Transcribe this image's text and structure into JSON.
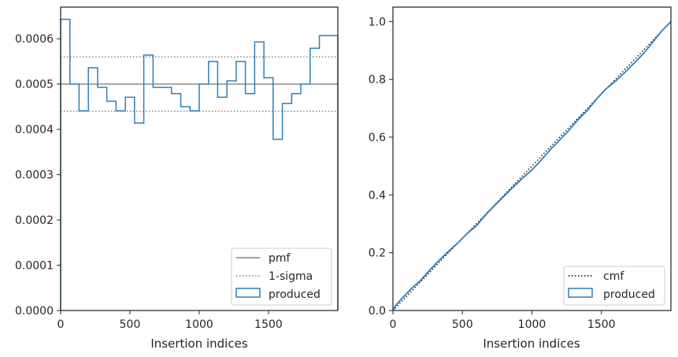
{
  "chart_data": [
    {
      "type": "step",
      "xlabel": "Insertion indices",
      "ylabel": "",
      "xlim": [
        0,
        2000
      ],
      "ylim": [
        0,
        0.00067
      ],
      "xticks": [
        0,
        500,
        1000,
        1500
      ],
      "xtick_labels": [
        "0",
        "500",
        "1000",
        "1500"
      ],
      "yticks": [
        0,
        0.0001,
        0.0002,
        0.0003,
        0.0004,
        0.0005,
        0.0006
      ],
      "ytick_labels": [
        "0.0000",
        "0.0001",
        "0.0002",
        "0.0003",
        "0.0004",
        "0.0005",
        "0.0006"
      ],
      "grid": false,
      "legend_position": "lower-right",
      "series": [
        {
          "name": "pmf",
          "kind": "hline",
          "y": 0.0005,
          "color": "#808080",
          "style": "solid"
        },
        {
          "name": "1-sigma",
          "kind": "hlines",
          "y": [
            0.00044,
            0.00056
          ],
          "color": "#808080",
          "style": "dotted"
        },
        {
          "name": "produced",
          "kind": "histogram",
          "color": "#2f7fb5",
          "bin_edges": [
            0,
            67,
            133,
            200,
            267,
            333,
            400,
            467,
            533,
            600,
            667,
            733,
            800,
            867,
            933,
            1000,
            1067,
            1133,
            1200,
            1267,
            1333,
            1400,
            1467,
            1533,
            1600,
            1667,
            1733,
            1800,
            1867,
            1933,
            2000
          ],
          "values": [
            0.000643,
            0.0005,
            0.000441,
            0.000536,
            0.000493,
            0.000462,
            0.000441,
            0.000471,
            0.000414,
            0.000564,
            0.000493,
            0.000493,
            0.000479,
            0.00045,
            0.000441,
            0.0005,
            0.00055,
            0.000471,
            0.000507,
            0.00055,
            0.000479,
            0.000593,
            0.000514,
            0.000378,
            0.000457,
            0.000479,
            0.0005,
            0.000579,
            0.000607,
            0.000607
          ]
        }
      ]
    },
    {
      "type": "line",
      "xlabel": "Insertion indices",
      "ylabel": "",
      "xlim": [
        0,
        2000
      ],
      "ylim": [
        0,
        1.05
      ],
      "xticks": [
        0,
        500,
        1000,
        1500
      ],
      "xtick_labels": [
        "0",
        "500",
        "1000",
        "1500"
      ],
      "yticks": [
        0,
        0.2,
        0.4,
        0.6,
        0.8,
        1.0
      ],
      "ytick_labels": [
        "0.0",
        "0.2",
        "0.4",
        "0.6",
        "0.8",
        "1.0"
      ],
      "grid": false,
      "legend_position": "lower-right",
      "series": [
        {
          "name": "cmf",
          "color": "#000000",
          "style": "dotted",
          "x": [
            0,
            2000
          ],
          "y": [
            0,
            1.0
          ]
        },
        {
          "name": "produced",
          "color": "#2f7fb5",
          "style": "solid",
          "x": [
            0,
            20,
            67,
            133,
            200,
            267,
            333,
            400,
            467,
            533,
            600,
            667,
            733,
            800,
            867,
            933,
            1000,
            1067,
            1133,
            1200,
            1267,
            1333,
            1400,
            1467,
            1533,
            1600,
            1667,
            1733,
            1800,
            1867,
            1933,
            2000
          ],
          "y": [
            0,
            0.018,
            0.043,
            0.076,
            0.105,
            0.141,
            0.174,
            0.205,
            0.234,
            0.266,
            0.293,
            0.331,
            0.364,
            0.396,
            0.428,
            0.458,
            0.487,
            0.521,
            0.557,
            0.59,
            0.624,
            0.661,
            0.693,
            0.733,
            0.767,
            0.793,
            0.823,
            0.855,
            0.888,
            0.927,
            0.967,
            1.0
          ]
        }
      ]
    }
  ]
}
